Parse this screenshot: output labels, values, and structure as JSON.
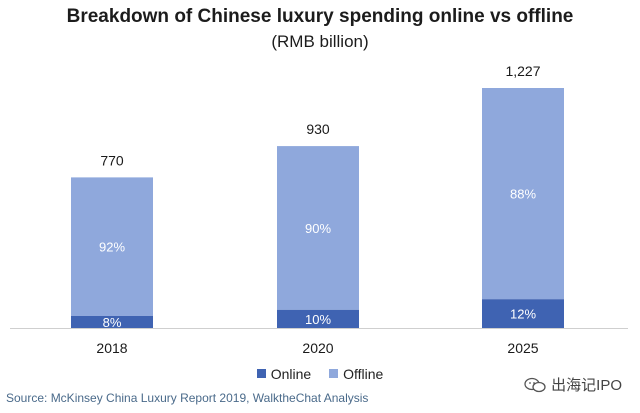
{
  "chart_data": {
    "type": "bar",
    "stacked": true,
    "title": "Breakdown of Chinese luxury spending online vs offline",
    "subtitle": "(RMB billion)",
    "categories": [
      "2018",
      "2020",
      "2025"
    ],
    "totals": [
      770,
      930,
      1227
    ],
    "total_labels": [
      "770",
      "930",
      "1,227"
    ],
    "series": [
      {
        "name": "Online",
        "color": "#3f63b2",
        "percent": [
          8,
          10,
          12
        ],
        "labels": [
          "8%",
          "10%",
          "12%"
        ]
      },
      {
        "name": "Offline",
        "color": "#8fa8dc",
        "percent": [
          92,
          90,
          88
        ],
        "labels": [
          "92%",
          "90%",
          "88%"
        ]
      }
    ],
    "ylim": [
      0,
      1227
    ],
    "legend_position": "bottom",
    "grid": false
  },
  "source": "Source: McKinsey China Luxury Report 2019, WalktheChat Analysis",
  "watermark": "出海记IPO"
}
